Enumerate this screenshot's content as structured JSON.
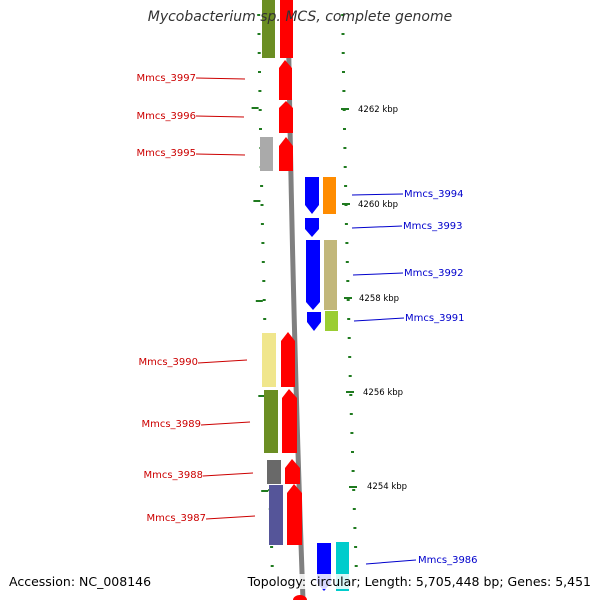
{
  "title": "Mycobacterium sp. MCS, complete genome",
  "footer": {
    "accession": "Accession: NC_008146",
    "topology": "Topology: circular; Length: 5,705,448 bp; Genes: 5,451"
  },
  "colors": {
    "backbone": "#808080",
    "tick": "#1f7a1f",
    "forward_strand": "#ff0000",
    "reverse_strand": "#0000ff",
    "label_left": "#cc0000",
    "label_right": "#0000cc"
  },
  "kbp_markers": [
    "4262 kbp",
    "4260 kbp",
    "4258 kbp",
    "4256 kbp",
    "4254 kbp"
  ],
  "genes_left": [
    {
      "id": "g3997",
      "label": "Mmcs_3997"
    },
    {
      "id": "g3996",
      "label": "Mmcs_3996"
    },
    {
      "id": "g3995",
      "label": "Mmcs_3995"
    },
    {
      "id": "g3990",
      "label": "Mmcs_3990"
    },
    {
      "id": "g3989",
      "label": "Mmcs_3989"
    },
    {
      "id": "g3988",
      "label": "Mmcs_3988"
    },
    {
      "id": "g3987",
      "label": "Mmcs_3987"
    }
  ],
  "genes_right": [
    {
      "id": "g3994",
      "label": "Mmcs_3994"
    },
    {
      "id": "g3993",
      "label": "Mmcs_3993"
    },
    {
      "id": "g3992",
      "label": "Mmcs_3992"
    },
    {
      "id": "g3991",
      "label": "Mmcs_3991"
    },
    {
      "id": "g3986",
      "label": "Mmcs_3986"
    }
  ]
}
